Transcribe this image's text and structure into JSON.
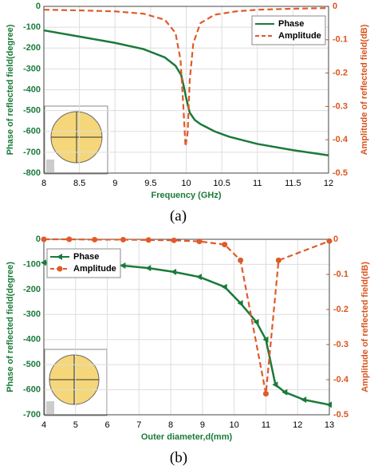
{
  "chart_data": [
    {
      "type": "line",
      "caption": "(a)",
      "xlabel": "Frequency (GHz)",
      "ylabel": "Phase of reflected field(degree)",
      "y2label": "Amplitude of reflected field(dB)",
      "xlim": [
        8,
        12
      ],
      "xticks": [
        8,
        8.5,
        9,
        9.5,
        10,
        10.5,
        11,
        11.5,
        12
      ],
      "ylim": [
        -800,
        0
      ],
      "yticks": [
        0,
        -100,
        -200,
        -300,
        -400,
        -500,
        -600,
        -700,
        -800
      ],
      "y2lim": [
        -0.5,
        0
      ],
      "y2ticks": [
        0,
        -0.1,
        -0.2,
        -0.3,
        -0.4,
        -0.5
      ],
      "grid": true,
      "legend": "upper right",
      "series": [
        {
          "name": "Phase",
          "color": "#1a7a3a",
          "dash": false,
          "marker": null,
          "x": [
            8,
            8.5,
            9,
            9.4,
            9.7,
            9.85,
            9.93,
            9.97,
            10.0,
            10.05,
            10.12,
            10.2,
            10.4,
            10.6,
            11,
            11.5,
            12
          ],
          "values": [
            -115,
            -145,
            -175,
            -205,
            -245,
            -285,
            -330,
            -390,
            -440,
            -510,
            -545,
            -565,
            -600,
            -625,
            -660,
            -690,
            -715
          ]
        },
        {
          "name": "Amplitude",
          "color": "#e05a2a",
          "dash": true,
          "marker": null,
          "axis": "y2",
          "x": [
            8,
            8.5,
            9,
            9.4,
            9.7,
            9.85,
            9.92,
            9.96,
            9.99,
            10.02,
            10.05,
            10.1,
            10.2,
            10.4,
            10.7,
            11,
            11.5,
            12
          ],
          "values": [
            -0.01,
            -0.012,
            -0.015,
            -0.022,
            -0.04,
            -0.08,
            -0.16,
            -0.3,
            -0.42,
            -0.38,
            -0.22,
            -0.11,
            -0.05,
            -0.025,
            -0.015,
            -0.01,
            -0.007,
            -0.005
          ]
        }
      ]
    },
    {
      "type": "line",
      "caption": "(b)",
      "xlabel": "Outer diameter,d(mm)",
      "ylabel": "Phase of reflected field(degree)",
      "y2label": "Amplitude of reflected field(dB)",
      "xlim": [
        4,
        13
      ],
      "xticks": [
        4,
        5,
        6,
        7,
        8,
        9,
        10,
        11,
        12,
        13
      ],
      "ylim": [
        -700,
        0
      ],
      "yticks": [
        0,
        -100,
        -200,
        -300,
        -400,
        -500,
        -600,
        -700
      ],
      "y2lim": [
        -0.5,
        0
      ],
      "y2ticks": [
        0,
        -0.1,
        -0.2,
        -0.3,
        -0.4,
        -0.5
      ],
      "grid": true,
      "legend": "upper left",
      "series": [
        {
          "name": "Phase",
          "color": "#1a7a3a",
          "dash": false,
          "marker": "triangle",
          "x": [
            4,
            4.8,
            5.6,
            6.5,
            7.3,
            8.1,
            8.9,
            9.7,
            10.2,
            10.7,
            11.0,
            11.3,
            11.6,
            12.2,
            13
          ],
          "values": [
            -93,
            -96,
            -100,
            -105,
            -115,
            -130,
            -150,
            -190,
            -255,
            -330,
            -400,
            -580,
            -610,
            -640,
            -660
          ]
        },
        {
          "name": "Amplitude",
          "color": "#e05a2a",
          "dash": true,
          "marker": "circle",
          "axis": "y2",
          "x": [
            4,
            4.8,
            5.6,
            6.5,
            7.3,
            8.1,
            8.9,
            9.7,
            10.2,
            11.0,
            11.4,
            13
          ],
          "values": [
            0,
            0,
            -0.001,
            -0.001,
            -0.002,
            -0.003,
            -0.006,
            -0.015,
            -0.06,
            -0.44,
            -0.06,
            -0.005
          ]
        }
      ]
    }
  ]
}
